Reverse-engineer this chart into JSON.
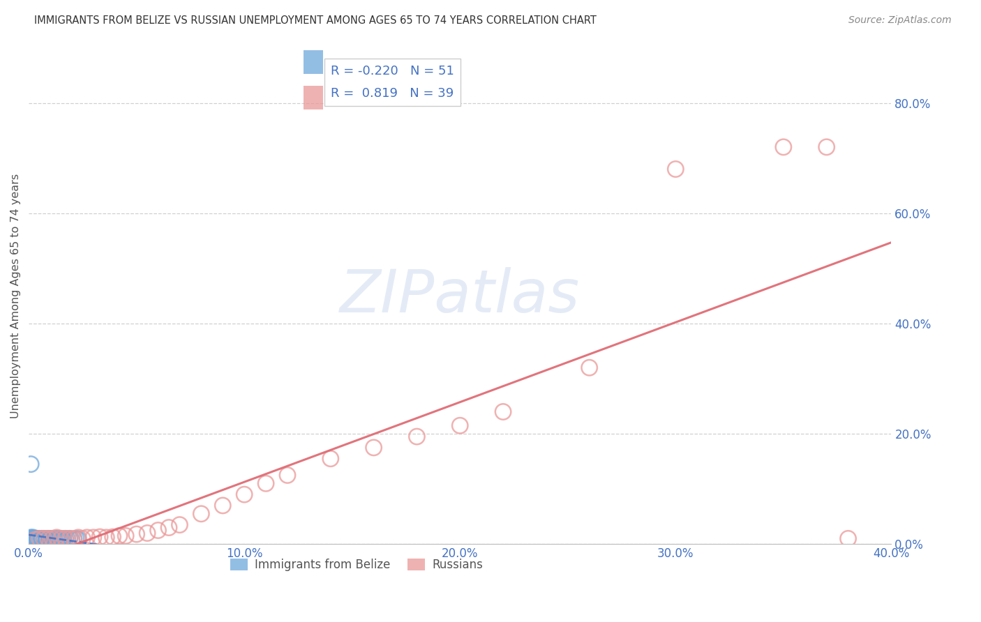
{
  "title": "IMMIGRANTS FROM BELIZE VS RUSSIAN UNEMPLOYMENT AMONG AGES 65 TO 74 YEARS CORRELATION CHART",
  "source": "Source: ZipAtlas.com",
  "ylabel": "Unemployment Among Ages 65 to 74 years",
  "background_color": "#ffffff",
  "title_color": "#333333",
  "title_fontsize": 10.5,
  "source_fontsize": 10,
  "tick_label_color": "#4472c4",
  "grid_color": "#d0d0d0",
  "xlim": [
    0.0,
    0.4
  ],
  "ylim": [
    0.0,
    0.9
  ],
  "yticks": [
    0.0,
    0.2,
    0.4,
    0.6,
    0.8
  ],
  "xticks": [
    0.0,
    0.1,
    0.2,
    0.3,
    0.4
  ],
  "belize_R": -0.22,
  "belize_N": 51,
  "russian_R": 0.819,
  "russian_N": 39,
  "belize_color": "#6fa8dc",
  "russian_color": "#ea9999",
  "belize_line_color": "#4472c4",
  "russian_line_color": "#e06c75",
  "watermark_color": "#cfdcf0",
  "legend_edge_color": "#cccccc",
  "belize_x": [
    0.001,
    0.001,
    0.001,
    0.002,
    0.002,
    0.002,
    0.002,
    0.002,
    0.003,
    0.003,
    0.003,
    0.003,
    0.004,
    0.004,
    0.004,
    0.004,
    0.005,
    0.005,
    0.005,
    0.006,
    0.006,
    0.006,
    0.007,
    0.007,
    0.007,
    0.008,
    0.008,
    0.009,
    0.009,
    0.01,
    0.01,
    0.011,
    0.011,
    0.012,
    0.012,
    0.013,
    0.013,
    0.014,
    0.014,
    0.015,
    0.015,
    0.016,
    0.016,
    0.017,
    0.018,
    0.019,
    0.02,
    0.021,
    0.022,
    0.023,
    0.001
  ],
  "belize_y": [
    0.01,
    0.008,
    0.012,
    0.01,
    0.009,
    0.01,
    0.008,
    0.012,
    0.009,
    0.01,
    0.008,
    0.01,
    0.009,
    0.01,
    0.008,
    0.01,
    0.009,
    0.01,
    0.008,
    0.01,
    0.009,
    0.01,
    0.01,
    0.009,
    0.008,
    0.009,
    0.01,
    0.01,
    0.009,
    0.008,
    0.01,
    0.01,
    0.009,
    0.01,
    0.008,
    0.01,
    0.009,
    0.008,
    0.01,
    0.009,
    0.01,
    0.008,
    0.009,
    0.01,
    0.009,
    0.01,
    0.008,
    0.009,
    0.01,
    0.009,
    0.145
  ],
  "russian_x": [
    0.003,
    0.005,
    0.007,
    0.009,
    0.011,
    0.013,
    0.015,
    0.017,
    0.019,
    0.021,
    0.023,
    0.025,
    0.027,
    0.03,
    0.033,
    0.036,
    0.039,
    0.042,
    0.045,
    0.05,
    0.055,
    0.06,
    0.065,
    0.07,
    0.08,
    0.09,
    0.1,
    0.11,
    0.12,
    0.14,
    0.16,
    0.18,
    0.2,
    0.22,
    0.26,
    0.3,
    0.35,
    0.37,
    0.38
  ],
  "russian_y": [
    0.008,
    0.01,
    0.01,
    0.01,
    0.01,
    0.012,
    0.01,
    0.01,
    0.01,
    0.01,
    0.012,
    0.01,
    0.012,
    0.012,
    0.013,
    0.012,
    0.013,
    0.015,
    0.015,
    0.018,
    0.02,
    0.025,
    0.03,
    0.035,
    0.055,
    0.07,
    0.09,
    0.11,
    0.125,
    0.155,
    0.175,
    0.195,
    0.215,
    0.24,
    0.32,
    0.68,
    0.72,
    0.72,
    0.01
  ]
}
